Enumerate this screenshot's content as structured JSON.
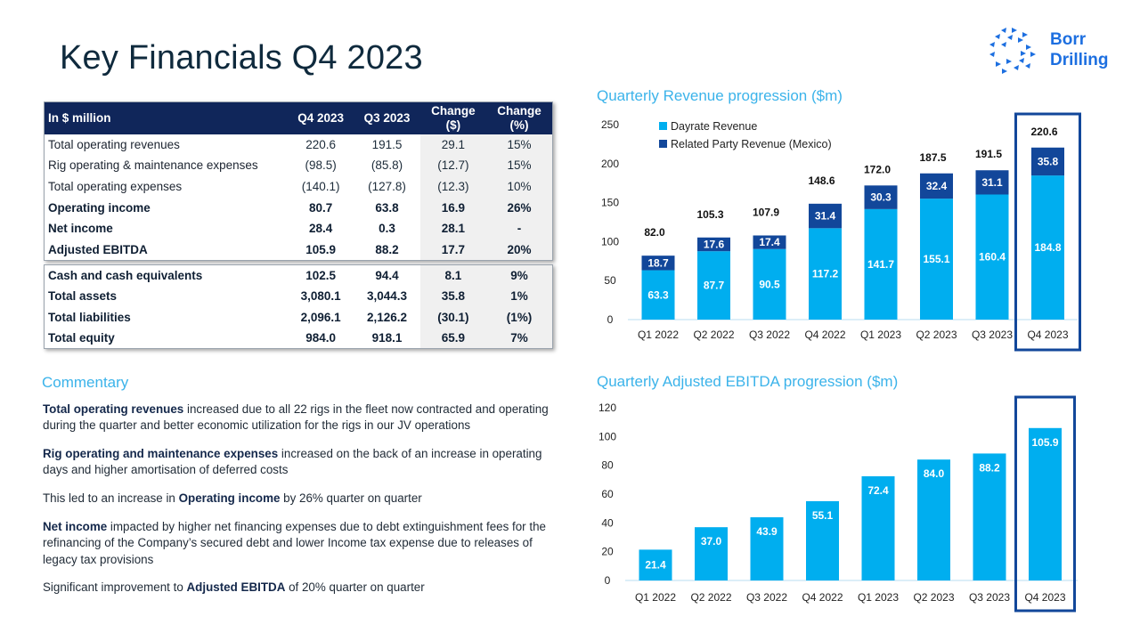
{
  "header": {
    "title": "Key Financials Q4 2023",
    "logo_line1": "Borr",
    "logo_line2": "Drilling"
  },
  "colors": {
    "navy": "#10265a",
    "accent_light": "#00aeef",
    "accent_dark": "#12479a",
    "highlight_box": "#12479a",
    "section_title": "#3bb3ea"
  },
  "table_main": {
    "headers": [
      "In $ million",
      "Q4 2023",
      "Q3 2023",
      "Change ($)",
      "Change (%)"
    ],
    "header_change_dollar_line1": "Change",
    "header_change_dollar_line2": "($)",
    "header_change_pct_line1": "Change",
    "header_change_pct_line2": "(%)",
    "rows": [
      {
        "label": "Total operating revenues",
        "q4": "220.6",
        "q3": "191.5",
        "chg": "29.1",
        "pct": "15%",
        "bold": false
      },
      {
        "label": "Rig operating & maintenance  expenses",
        "q4": "(98.5)",
        "q3": "(85.8)",
        "chg": "(12.7)",
        "pct": "15%",
        "bold": false
      },
      {
        "label": "Total operating expenses",
        "q4": "(140.1)",
        "q3": "(127.8)",
        "chg": "(12.3)",
        "pct": "10%",
        "bold": false
      },
      {
        "label": "Operating income",
        "q4": "80.7",
        "q3": "63.8",
        "chg": "16.9",
        "pct": "26%",
        "bold": true
      },
      {
        "label": "Net income",
        "q4": "28.4",
        "q3": "0.3",
        "chg": "28.1",
        "pct": "-",
        "bold": true
      },
      {
        "label": "Adjusted EBITDA",
        "q4": "105.9",
        "q3": "88.2",
        "chg": "17.7",
        "pct": "20%",
        "bold": true
      }
    ]
  },
  "table_balance": {
    "rows": [
      {
        "label": "Cash and cash equivalents",
        "q4": "102.5",
        "q3": "94.4",
        "chg": "8.1",
        "pct": "9%"
      },
      {
        "label": "Total assets",
        "q4": "3,080.1",
        "q3": "3,044.3",
        "chg": "35.8",
        "pct": "1%"
      },
      {
        "label": "Total liabilities",
        "q4": "2,096.1",
        "q3": "2,126.2",
        "chg": "(30.1)",
        "pct": "(1%)"
      },
      {
        "label": "Total equity",
        "q4": "984.0",
        "q3": "918.1",
        "chg": "65.9",
        "pct": "7%"
      }
    ]
  },
  "commentary": {
    "title": "Commentary",
    "paragraphs": [
      {
        "bold": "Total operating revenues",
        "pre": "",
        "text": " increased  due to all 22 rigs in the fleet now contracted and operating during the quarter and better economic  utilization for the rigs in our JV operations"
      },
      {
        "bold": "Rig operating and maintenance expenses",
        "pre": "",
        "text": " increased on the back of an increase in operating days and higher amortisation of deferred costs"
      },
      {
        "bold": "Operating income",
        "pre": "This led to an increase  in ",
        "text": " by 26% quarter on quarter"
      },
      {
        "bold": "Net income",
        "pre": "",
        "text": " impacted by higher net financing expenses due to debt extinguishment fees for the refinancing of the Company’s secured debt and lower Income tax expense due to releases of legacy tax provisions"
      },
      {
        "bold": "Adjusted EBITDA",
        "pre": "Significant  improvement  to ",
        "text": " of 20% quarter on quarter"
      }
    ]
  },
  "chart_data": [
    {
      "type": "bar",
      "stacked": true,
      "title": "Quarterly Revenue progression ($m)",
      "xlabel": "",
      "ylabel": "",
      "ylim": [
        0,
        250
      ],
      "yticks": [
        0,
        50,
        100,
        150,
        200,
        250
      ],
      "grid": false,
      "legend_position": "top-left",
      "categories": [
        "Q1 2022",
        "Q2 2022",
        "Q3 2022",
        "Q4 2022",
        "Q1 2023",
        "Q2 2023",
        "Q3 2023",
        "Q4 2023"
      ],
      "series": [
        {
          "name": "Dayrate Revenue",
          "color": "#00aeef",
          "values": [
            63.3,
            87.7,
            90.5,
            117.2,
            141.7,
            155.1,
            160.4,
            184.8
          ]
        },
        {
          "name": "Related Party Revenue (Mexico)",
          "color": "#12479a",
          "values": [
            18.7,
            17.6,
            17.4,
            31.4,
            30.3,
            32.4,
            31.1,
            35.8
          ]
        }
      ],
      "totals": [
        "82.0",
        "105.3",
        "107.9",
        "148.6",
        "172.0",
        "187.5",
        "191.5",
        "220.6"
      ],
      "highlight_category": "Q4 2023"
    },
    {
      "type": "bar",
      "title": "Quarterly Adjusted EBITDA progression ($m)",
      "xlabel": "",
      "ylabel": "",
      "ylim": [
        0,
        120
      ],
      "yticks": [
        0,
        20,
        40,
        60,
        80,
        100,
        120
      ],
      "grid": false,
      "categories": [
        "Q1 2022",
        "Q2 2022",
        "Q3 2022",
        "Q4 2022",
        "Q1 2023",
        "Q2 2023",
        "Q3 2023",
        "Q4 2023"
      ],
      "values": [
        21.4,
        37.0,
        43.9,
        55.1,
        72.4,
        84.0,
        88.2,
        105.9
      ],
      "color": "#00aeef",
      "highlight_category": "Q4 2023"
    }
  ]
}
